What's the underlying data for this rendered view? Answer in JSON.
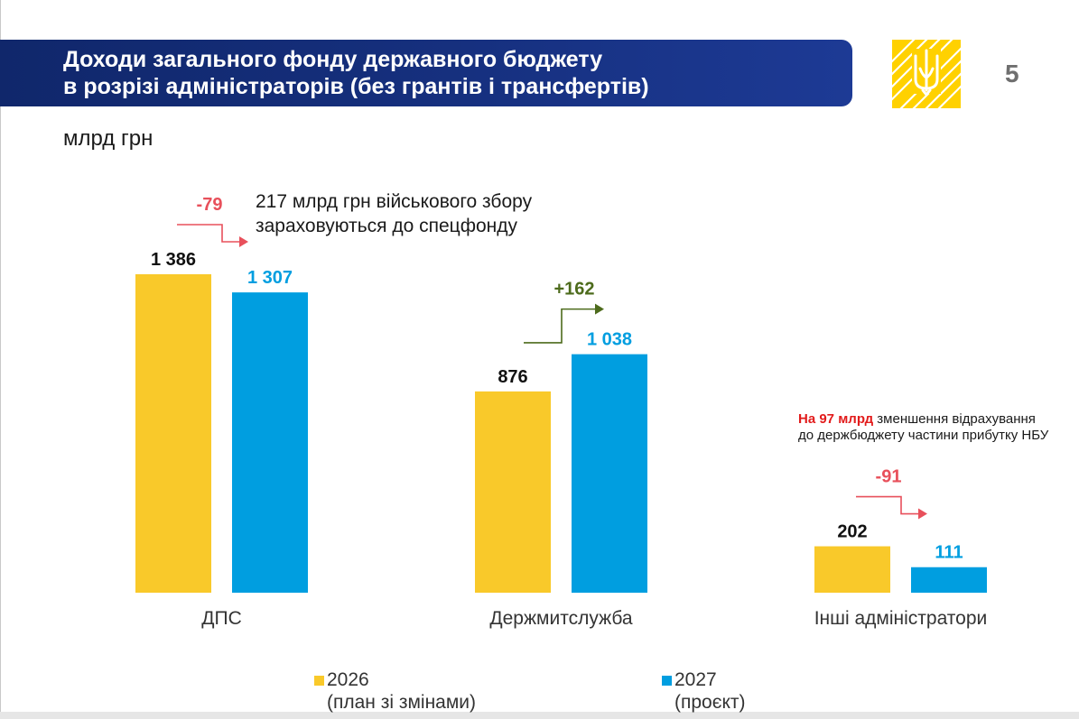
{
  "header": {
    "title_line1": "Доходи загального фонду державного бюджету",
    "title_line2": "в розрізі адміністраторів (без грантів і трансфертів)",
    "page_number": "5"
  },
  "unit_label": "млрд грн",
  "colors": {
    "series_2026": "#f9c92a",
    "series_2027": "#009ee0",
    "decrease": "#e8505b",
    "increase": "#4d6b1c",
    "banner": "#16307f"
  },
  "chart_data": {
    "type": "bar",
    "categories": [
      "ДПС",
      "Держмитслужба",
      "Інші адміністратори"
    ],
    "series": [
      {
        "name": "2026 (план зі змінами)",
        "values": [
          1386,
          876,
          202
        ],
        "labels": [
          "1 386",
          "876",
          "202"
        ]
      },
      {
        "name": "2027 (проєкт)",
        "values": [
          1307,
          1038,
          111
        ],
        "labels": [
          "1 307",
          "1 038",
          "111"
        ]
      }
    ],
    "changes": [
      "-79",
      "+162",
      "-91"
    ],
    "ylim": [
      0,
      1386
    ],
    "grid": false,
    "legend": "bottom"
  },
  "annotations": {
    "dps_note": "217 млрд грн військового збору зараховуються до спецфонду",
    "nbu_note_highlight": "На 97 млрд",
    "nbu_note_rest": " зменшення відрахування до держбюджету частини прибутку НБУ"
  },
  "legend": {
    "s2026_line1": "2026",
    "s2026_line2": "(план зі змінами)",
    "s2027_line1": "2027",
    "s2027_line2": "(проєкт)"
  }
}
